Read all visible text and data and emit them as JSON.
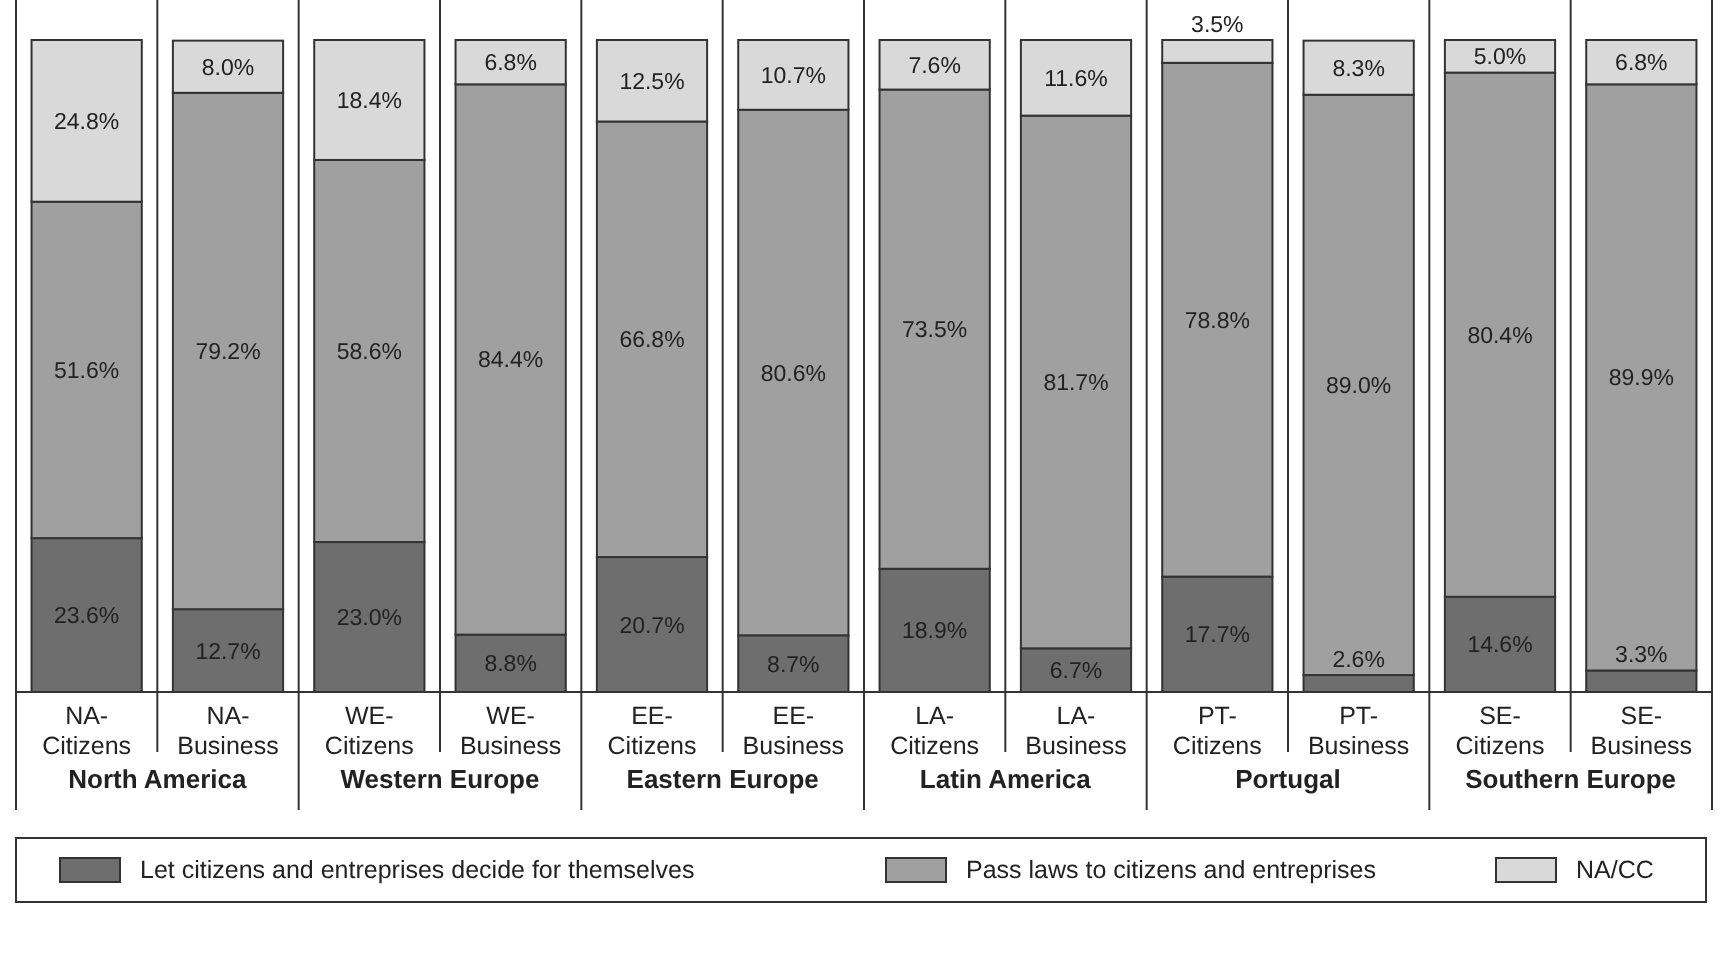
{
  "chart_data": {
    "type": "bar",
    "stacked": true,
    "data_labels": true,
    "legend": "bottom",
    "grid": false,
    "categories": [
      "NA-Citizens",
      "NA-Business",
      "WE-Citizens",
      "WE-Business",
      "EE-Citizens",
      "EE-Business",
      "LA-Citizens",
      "LA-Business",
      "PT-Citizens",
      "PT-Business",
      "SE-Citizens",
      "SE-Business"
    ],
    "series": [
      {
        "name": "Let citizens and entreprises  decide for themselves",
        "color": "#6e6e6e",
        "values": [
          23.6,
          12.7,
          23.0,
          8.8,
          20.7,
          8.7,
          18.9,
          6.7,
          17.7,
          2.6,
          14.6,
          3.3
        ],
        "value_labels": [
          "23.6%",
          "12.7%",
          "23.0%",
          "8.8%",
          "20.7%",
          "8.7%",
          "18.9%",
          "6.7%",
          "17.7%",
          "2.6%",
          "14.6%",
          "3.3%"
        ]
      },
      {
        "name": "Pass laws to citizens and entreprises",
        "color": "#a0a0a0",
        "values": [
          51.6,
          79.2,
          58.6,
          84.4,
          66.8,
          80.6,
          73.5,
          81.7,
          78.8,
          89.0,
          80.4,
          89.9
        ],
        "value_labels": [
          "51.6%",
          "79.2%",
          "58.6%",
          "84.4%",
          "66.8%",
          "80.6%",
          "73.5%",
          "81.7%",
          "78.8%",
          "89.0%",
          "80.4%",
          "89.9%"
        ]
      },
      {
        "name": "NA/CC",
        "color": "#d9d9d9",
        "values": [
          24.8,
          8.0,
          18.4,
          6.8,
          12.5,
          10.7,
          7.6,
          11.6,
          3.5,
          8.3,
          5.0,
          6.8
        ],
        "value_labels": [
          "24.8%",
          "8.0%",
          "18.4%",
          "6.8%",
          "12.5%",
          "10.7%",
          "7.6%",
          "11.6%",
          "3.5%",
          "8.3%",
          "5.0%",
          "6.8%"
        ]
      }
    ],
    "annotations": [
      "North America",
      "Western Europe",
      "Eastern Europe",
      "Latin America",
      "Portugal",
      "Southern Europe"
    ]
  }
}
